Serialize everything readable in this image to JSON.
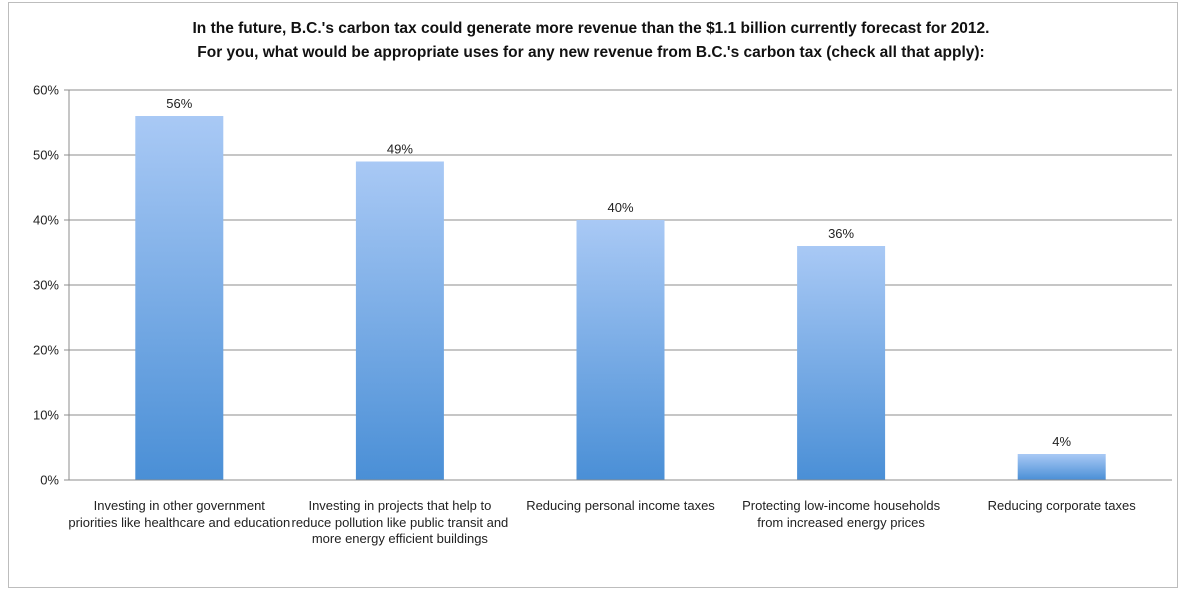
{
  "chart_data": {
    "type": "bar",
    "title": "In the future, B.C.'s carbon tax could generate more revenue than the $1.1 billion currently forecast for 2012.",
    "subtitle": "For you, what would be appropriate uses for any new revenue from B.C.'s carbon tax (check all that apply):",
    "categories": [
      "Investing in other government priorities like healthcare and education",
      "Investing in projects that help to reduce pollution like public transit and more energy efficient buildings",
      "Reducing personal income taxes",
      "Protecting low-income households from increased energy prices",
      "Reducing corporate taxes"
    ],
    "values": [
      56,
      49,
      40,
      36,
      4
    ],
    "data_labels": [
      "56%",
      "49%",
      "40%",
      "36%",
      "4%"
    ],
    "ylim": [
      0,
      60
    ],
    "yticks": [
      0,
      10,
      20,
      30,
      40,
      50,
      60
    ],
    "ytick_labels": [
      "0%",
      "10%",
      "20%",
      "30%",
      "40%",
      "50%",
      "60%"
    ],
    "grid": true,
    "legend": "none",
    "colors": {
      "bar_top": "#a9c9f5",
      "bar_bottom": "#4a8fd6",
      "grid": "#8c8c8c",
      "text": "#222222"
    }
  }
}
